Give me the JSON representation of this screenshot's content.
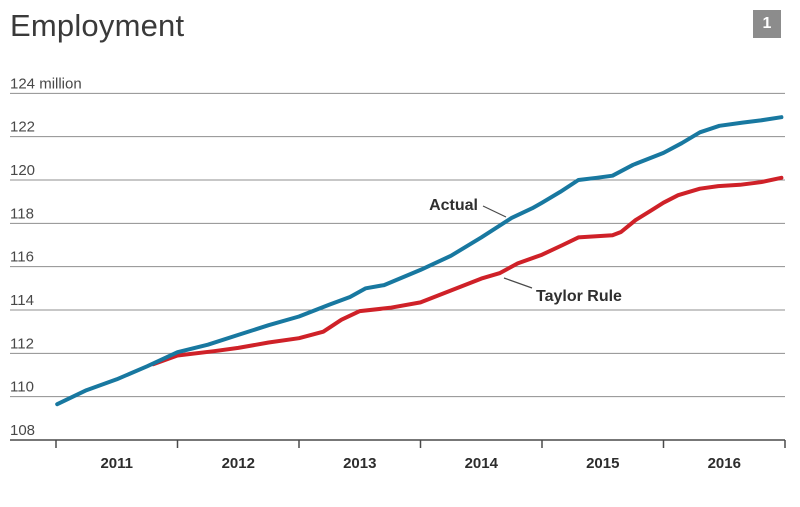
{
  "header": {
    "title": "Employment",
    "badge": "1"
  },
  "colors": {
    "actual_line": "#1878a0",
    "taylor_line": "#cf2128",
    "gridline": "#8f8f8f",
    "axis": "#4a4a4a",
    "tick_label": "#484848",
    "year_label": "#2d2d2d",
    "annotation_text": "#2f2f2f",
    "leader_line": "#4a4a4a",
    "badge_bg": "#8c8c8c",
    "badge_text": "#ffffff"
  },
  "chart_data": {
    "type": "line",
    "title": "Employment",
    "xlabel": "",
    "ylabel": "million",
    "grid": true,
    "legend_position": "inline-annotations",
    "xlim": [
      2010.62,
      2017.0
    ],
    "ylim": [
      108,
      124
    ],
    "y_axis": {
      "ticks": [
        108,
        110,
        112,
        114,
        116,
        118,
        120,
        122,
        124
      ],
      "labels": [
        "108",
        "110",
        "112",
        "114",
        "116",
        "118",
        "120",
        "122",
        "124 million"
      ]
    },
    "x_axis": {
      "tick_years": [
        2011,
        2012,
        2013,
        2014,
        2015,
        2016,
        2017
      ],
      "labels": [
        "2011",
        "2012",
        "2013",
        "2014",
        "2015",
        "2016"
      ]
    },
    "series": [
      {
        "name": "Actual",
        "color": "#1878a0",
        "points": [
          [
            2011.01,
            109.65
          ],
          [
            2011.25,
            110.3
          ],
          [
            2011.5,
            110.8
          ],
          [
            2011.75,
            111.4
          ],
          [
            2012.0,
            112.05
          ],
          [
            2012.25,
            112.4
          ],
          [
            2012.5,
            112.85
          ],
          [
            2012.75,
            113.3
          ],
          [
            2013.0,
            113.7
          ],
          [
            2013.25,
            114.25
          ],
          [
            2013.42,
            114.6
          ],
          [
            2013.55,
            115.0
          ],
          [
            2013.7,
            115.15
          ],
          [
            2014.0,
            115.85
          ],
          [
            2014.25,
            116.5
          ],
          [
            2014.5,
            117.35
          ],
          [
            2014.75,
            118.25
          ],
          [
            2014.92,
            118.7
          ],
          [
            2015.0,
            118.95
          ],
          [
            2015.15,
            119.45
          ],
          [
            2015.3,
            120.0
          ],
          [
            2015.45,
            120.1
          ],
          [
            2015.58,
            120.2
          ],
          [
            2015.75,
            120.7
          ],
          [
            2016.0,
            121.25
          ],
          [
            2016.15,
            121.7
          ],
          [
            2016.3,
            122.2
          ],
          [
            2016.46,
            122.5
          ],
          [
            2016.65,
            122.65
          ],
          [
            2016.8,
            122.75
          ],
          [
            2016.97,
            122.9
          ]
        ]
      },
      {
        "name": "Taylor Rule",
        "color": "#cf2128",
        "points": [
          [
            2011.8,
            111.5
          ],
          [
            2012.0,
            111.9
          ],
          [
            2012.3,
            112.1
          ],
          [
            2012.5,
            112.25
          ],
          [
            2012.75,
            112.5
          ],
          [
            2013.0,
            112.7
          ],
          [
            2013.2,
            113.0
          ],
          [
            2013.35,
            113.55
          ],
          [
            2013.5,
            113.95
          ],
          [
            2013.75,
            114.1
          ],
          [
            2014.0,
            114.35
          ],
          [
            2014.25,
            114.9
          ],
          [
            2014.5,
            115.45
          ],
          [
            2014.65,
            115.7
          ],
          [
            2014.8,
            116.15
          ],
          [
            2015.0,
            116.55
          ],
          [
            2015.17,
            117.0
          ],
          [
            2015.3,
            117.35
          ],
          [
            2015.58,
            117.45
          ],
          [
            2015.65,
            117.6
          ],
          [
            2015.77,
            118.15
          ],
          [
            2015.9,
            118.6
          ],
          [
            2016.0,
            118.95
          ],
          [
            2016.12,
            119.3
          ],
          [
            2016.3,
            119.6
          ],
          [
            2016.45,
            119.72
          ],
          [
            2016.63,
            119.78
          ],
          [
            2016.8,
            119.9
          ],
          [
            2016.97,
            120.1
          ]
        ]
      }
    ],
    "annotations": [
      {
        "label": "Actual"
      },
      {
        "label": "Taylor Rule"
      }
    ]
  }
}
